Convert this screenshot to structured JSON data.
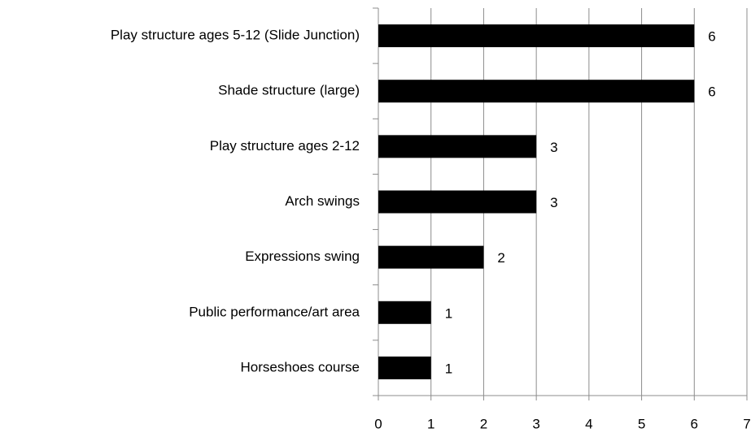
{
  "chart_data": {
    "type": "bar",
    "orientation": "horizontal",
    "categories": [
      "Play structure ages 5-12 (Slide Junction)",
      "Shade structure (large)",
      "Play structure ages 2-12",
      "Arch swings",
      "Expressions swing",
      "Public performance/art area",
      "Horseshoes course"
    ],
    "values": [
      6,
      6,
      3,
      3,
      2,
      1,
      1
    ],
    "color": "#000000",
    "xlim": [
      0,
      7
    ],
    "xticks": [
      0,
      1,
      2,
      3,
      4,
      5,
      6,
      7
    ],
    "grid": true,
    "data_labels": true
  }
}
